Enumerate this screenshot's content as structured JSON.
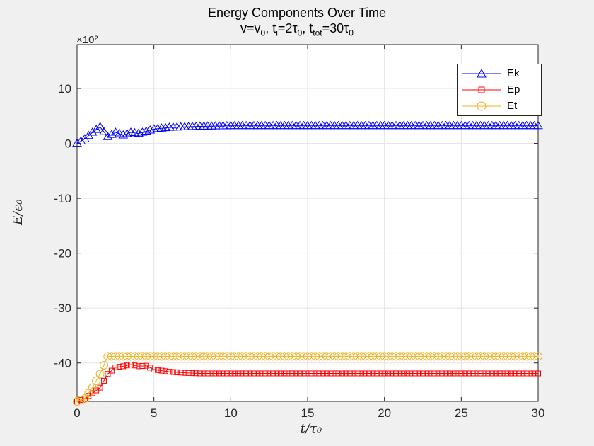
{
  "chart_data": {
    "type": "line",
    "title_line1": "Energy Components Over Time",
    "title_line2_parts": {
      "v": "v=v",
      "v_sub": "0",
      "ti": ", t",
      "ti_sub": "i",
      "ti_eq": "=2τ",
      "ti_tau_sub": "0",
      "ttot": ", t",
      "ttot_sub": "tot",
      "ttot_eq": "=30τ",
      "ttot_tau_sub": "0"
    },
    "xlabel": "t/τ₀",
    "ylabel": "E/ϵ₀",
    "y_exponent": "×10²",
    "xlim": [
      0,
      30
    ],
    "ylim": [
      -47,
      18
    ],
    "xticks": [
      0,
      5,
      10,
      15,
      20,
      25,
      30
    ],
    "yticks": [
      -40,
      -30,
      -20,
      -10,
      0,
      10
    ],
    "grid": true,
    "legend_position": "top-right",
    "series": [
      {
        "name": "Ek",
        "color": "#0000ff",
        "marker": "triangle",
        "x": [
          0,
          0.5,
          1,
          1.5,
          2,
          2.5,
          3,
          3.5,
          4,
          5,
          6,
          7,
          8,
          10,
          12,
          15,
          20,
          25,
          30
        ],
        "y": [
          0,
          0.8,
          2,
          3,
          1.2,
          2,
          1.5,
          2,
          1.8,
          2.6,
          2.9,
          3,
          3.1,
          3.2,
          3.2,
          3.2,
          3.2,
          3.2,
          3.2
        ]
      },
      {
        "name": "Ep",
        "color": "#ff0000",
        "marker": "square",
        "x": [
          0,
          0.5,
          1,
          1.5,
          2,
          2.5,
          3,
          3.5,
          4,
          4.5,
          5,
          6,
          7,
          8,
          10,
          12,
          15,
          20,
          25,
          30
        ],
        "y": [
          -47,
          -46.5,
          -45.5,
          -44.5,
          -42,
          -40.8,
          -40.6,
          -40.3,
          -40.6,
          -40.5,
          -41.2,
          -41.6,
          -41.8,
          -41.9,
          -41.9,
          -41.9,
          -41.9,
          -41.9,
          -41.9,
          -41.9
        ]
      },
      {
        "name": "Et",
        "color": "#edb120",
        "marker": "circle",
        "x": [
          0,
          0.5,
          1,
          1.5,
          2,
          2.5,
          3,
          5,
          10,
          15,
          20,
          25,
          30
        ],
        "y": [
          -47,
          -46.5,
          -44.5,
          -42,
          -38.8,
          -38.8,
          -38.8,
          -38.8,
          -38.8,
          -38.8,
          -38.8,
          -38.8,
          -38.8
        ]
      }
    ]
  }
}
